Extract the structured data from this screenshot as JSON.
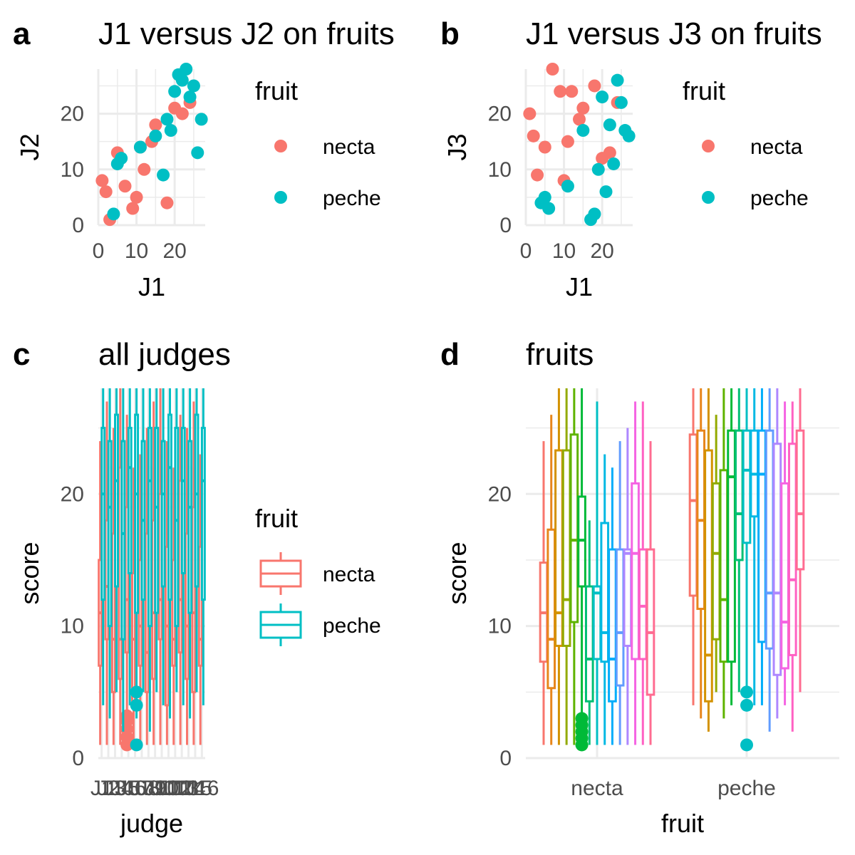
{
  "colors": {
    "necta": "#F8766D",
    "peche": "#00BFC4",
    "judges": [
      "#F8766D",
      "#E7861B",
      "#D39200",
      "#B79F00",
      "#93AA00",
      "#5EB300",
      "#00BA38",
      "#00BF74",
      "#00C19F",
      "#00BFC4",
      "#00B9E3",
      "#00ADFA",
      "#619CFF",
      "#AE87FF",
      "#DB72FB",
      "#F564E3",
      "#FF61C3",
      "#FF6C91"
    ]
  },
  "chart_data": [
    {
      "panel": "a",
      "type": "scatter",
      "title": "J1 versus J2 on fruits",
      "xlabel": "J1",
      "ylabel": "J2",
      "xlim": [
        0,
        28
      ],
      "ylim": [
        0,
        28
      ],
      "xticks": [
        0,
        10,
        20
      ],
      "yticks": [
        0,
        10,
        20
      ],
      "legend": {
        "title": "fruit",
        "position": "right",
        "labels": [
          "necta",
          "peche"
        ]
      },
      "series": [
        {
          "name": "necta",
          "x": [
            1,
            2,
            3,
            5,
            7,
            9,
            10,
            11,
            12,
            14,
            15,
            18,
            20,
            22,
            24
          ],
          "y": [
            8,
            6,
            1,
            13,
            7,
            3,
            5,
            14,
            10,
            15,
            18,
            4,
            21,
            20,
            22
          ]
        },
        {
          "name": "peche",
          "x": [
            4,
            5,
            6,
            11,
            15,
            17,
            18,
            19,
            20,
            21,
            22,
            23,
            24,
            25,
            26,
            27
          ],
          "y": [
            2,
            11,
            12,
            14,
            16,
            9,
            19,
            17,
            24,
            27,
            26,
            28,
            23,
            25,
            13,
            19
          ]
        }
      ]
    },
    {
      "panel": "b",
      "type": "scatter",
      "title": "J1 versus J3 on fruits",
      "xlabel": "J1",
      "ylabel": "J3",
      "xlim": [
        0,
        28
      ],
      "ylim": [
        0,
        28
      ],
      "xticks": [
        0,
        10,
        20
      ],
      "yticks": [
        0,
        10,
        20
      ],
      "legend": {
        "title": "fruit",
        "position": "right",
        "labels": [
          "necta",
          "peche"
        ]
      },
      "series": [
        {
          "name": "necta",
          "x": [
            1,
            2,
            3,
            5,
            7,
            9,
            10,
            11,
            12,
            14,
            15,
            18,
            20,
            22,
            24
          ],
          "y": [
            20,
            16,
            9,
            14,
            28,
            24,
            8,
            15,
            24,
            19,
            21,
            25,
            12,
            13,
            22
          ]
        },
        {
          "name": "peche",
          "x": [
            4,
            5,
            6,
            11,
            15,
            17,
            18,
            19,
            20,
            21,
            22,
            23,
            24,
            25,
            26,
            27
          ],
          "y": [
            4,
            5,
            3,
            7,
            17,
            1,
            2,
            10,
            23,
            6,
            18,
            11,
            26,
            22,
            17,
            16
          ]
        }
      ]
    },
    {
      "panel": "c",
      "type": "boxplot",
      "title": "all judges",
      "xlabel": "judge",
      "ylabel": "score",
      "ylim": [
        0,
        28
      ],
      "yticks": [
        0,
        10,
        20
      ],
      "categories": [
        "J1",
        "J2",
        "J3",
        "J4",
        "J5",
        "J6",
        "J7",
        "J8",
        "J9",
        "J10",
        "J11",
        "J12",
        "J13",
        "J14",
        "J15",
        "J16"
      ],
      "legend": {
        "title": "fruit",
        "position": "right",
        "labels": [
          "necta",
          "peche"
        ]
      },
      "series": [
        {
          "name": "necta",
          "boxes": [
            [
              1,
              7,
              11,
              15,
              24
            ],
            [
              1,
              9,
              13,
              18,
              27
            ],
            [
              1,
              5,
              9,
              17,
              25
            ],
            [
              1,
              6,
              9,
              22,
              28
            ],
            [
              1,
              8,
              12,
              19,
              26
            ],
            [
              1,
              4,
              9,
              14,
              22
            ],
            [
              1,
              7,
              10,
              15,
              23
            ],
            [
              1,
              5,
              8,
              17,
              25
            ],
            [
              1,
              6,
              11,
              18,
              27
            ],
            [
              1,
              9,
              12,
              20,
              28
            ],
            [
              1,
              4,
              10,
              16,
              24
            ],
            [
              1,
              7,
              9,
              15,
              22
            ],
            [
              1,
              8,
              12,
              21,
              26
            ],
            [
              1,
              6,
              10,
              17,
              25
            ],
            [
              1,
              5,
              11,
              19,
              27
            ],
            [
              1,
              7,
              9,
              16,
              23
            ]
          ],
          "outliers": [
            [
              5,
              1
            ],
            [
              5,
              1.6
            ],
            [
              5,
              2.2
            ],
            [
              5,
              2.8
            ],
            [
              5,
              3.2
            ]
          ]
        },
        {
          "name": "peche",
          "boxes": [
            [
              4,
              12,
              20,
              25,
              28
            ],
            [
              3,
              10,
              19,
              24,
              28
            ],
            [
              5,
              13,
              21,
              26,
              28
            ],
            [
              2,
              9,
              17,
              24,
              28
            ],
            [
              4,
              14,
              22,
              25,
              28
            ],
            [
              3,
              11,
              20,
              26,
              28
            ],
            [
              5,
              12,
              18,
              24,
              28
            ],
            [
              2,
              10,
              21,
              25,
              28
            ],
            [
              5,
              11,
              19,
              25,
              28
            ],
            [
              4,
              13,
              20,
              24,
              28
            ],
            [
              3,
              12,
              22,
              26,
              28
            ],
            [
              5,
              10,
              18,
              25,
              28
            ],
            [
              4,
              14,
              21,
              25,
              28
            ],
            [
              3,
              11,
              19,
              24,
              28
            ],
            [
              5,
              13,
              20,
              26,
              28
            ],
            [
              4,
              12,
              21,
              25,
              28
            ]
          ],
          "outliers": [
            [
              6,
              1
            ],
            [
              6,
              4
            ],
            [
              6,
              5
            ]
          ]
        }
      ]
    },
    {
      "panel": "d",
      "type": "boxplot",
      "title": "fruits",
      "xlabel": "fruit",
      "ylabel": "score",
      "ylim": [
        0,
        28
      ],
      "yticks": [
        0,
        10,
        20
      ],
      "categories": [
        "necta",
        "peche"
      ],
      "groups": [
        {
          "category": "necta",
          "boxes": [
            [
              1,
              7.3,
              11,
              14.8,
              24
            ],
            [
              1,
              5.3,
              9,
              17.3,
              26
            ],
            [
              1,
              8.5,
              11,
              23.3,
              28
            ],
            [
              1,
              8.5,
              12,
              23.3,
              28
            ],
            [
              1,
              10.3,
              16.5,
              24.5,
              28
            ],
            [
              1,
              13,
              16.5,
              19.8,
              28
            ],
            [
              1,
              4.3,
              7.5,
              13,
              18
            ],
            [
              1,
              7.5,
              12.5,
              13,
              27
            ],
            [
              1,
              7.3,
              9.5,
              17.8,
              23
            ],
            [
              1,
              4.3,
              7.5,
              15.8,
              22
            ],
            [
              1,
              5.5,
              9.5,
              15.8,
              24
            ],
            [
              1,
              8.5,
              15.5,
              15.8,
              25
            ],
            [
              1,
              7.5,
              15.5,
              20.8,
              27
            ],
            [
              1,
              7.5,
              11.5,
              15.8,
              27
            ],
            [
              1,
              4.8,
              9.5,
              15.8,
              24
            ]
          ],
          "outliers": [
            [
              6,
              1
            ],
            [
              6,
              1.5
            ],
            [
              6,
              2
            ],
            [
              6,
              2.5
            ],
            [
              6,
              3
            ]
          ]
        },
        {
          "category": "peche",
          "boxes": [
            [
              4,
              12.3,
              19.5,
              24.5,
              28
            ],
            [
              3,
              11.3,
              18,
              24.8,
              28
            ],
            [
              2,
              4.3,
              7.8,
              23.3,
              28
            ],
            [
              5,
              9,
              15.5,
              20.8,
              26
            ],
            [
              3,
              7.3,
              12,
              21.8,
              28
            ],
            [
              4,
              7.3,
              21.3,
              24.8,
              28
            ],
            [
              5,
              15,
              18.5,
              24.8,
              28
            ],
            [
              5,
              16.3,
              21.8,
              24.8,
              28
            ],
            [
              4,
              18.3,
              21.5,
              24.8,
              28
            ],
            [
              4,
              8.8,
              21.5,
              24.8,
              28
            ],
            [
              2,
              8.3,
              12.5,
              24.8,
              28
            ],
            [
              3,
              6.3,
              12.5,
              23.8,
              28
            ],
            [
              4,
              6.8,
              10.3,
              20.8,
              27
            ],
            [
              2,
              7.8,
              13.5,
              23.8,
              27
            ],
            [
              5,
              14.3,
              18.5,
              24.8,
              28
            ]
          ],
          "outliers": [
            [
              8,
              1
            ],
            [
              8,
              4
            ],
            [
              8,
              5
            ]
          ]
        }
      ]
    }
  ]
}
